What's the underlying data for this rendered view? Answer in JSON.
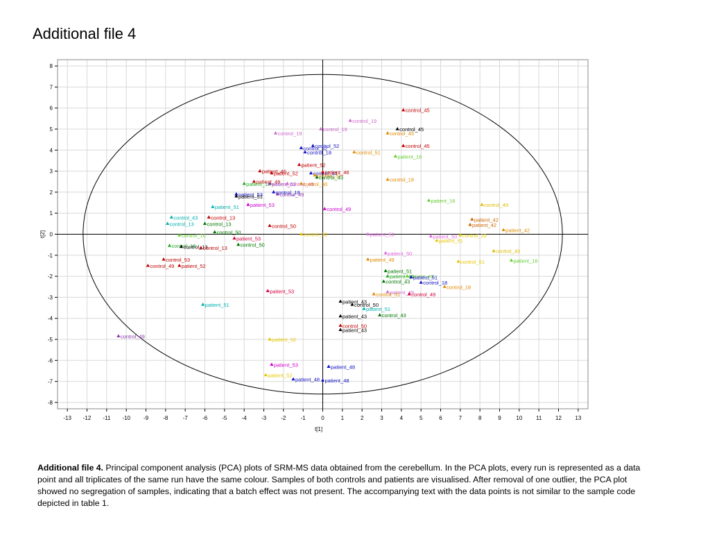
{
  "page": {
    "title": "Additional file 4",
    "caption_label": "Additional file 4.",
    "caption_text": "Principal component analysis (PCA) plots of SRM-MS data obtained from the cerebellum. In the PCA plots, every run is represented as a data point and all triplicates of the same run have the same colour. Samples of both controls and patients are visualised. After removal of one outlier, the PCA plot showed no segregation of samples, indicating that a batch effect was not present. The accompanying text with the data points is not similar to the sample code depicted in table 1."
  },
  "chart_data": {
    "type": "scatter",
    "xlabel": "t[1]",
    "ylabel": "t[2]",
    "xlim": [
      -13.5,
      13.5
    ],
    "ylim": [
      -8.3,
      8.3
    ],
    "xticks": [
      -13,
      -12,
      -11,
      -10,
      -9,
      -8,
      -7,
      -6,
      -5,
      -4,
      -3,
      -2,
      -1,
      0,
      1,
      2,
      3,
      4,
      5,
      6,
      7,
      8,
      9,
      10,
      11,
      12,
      13
    ],
    "yticks": [
      8,
      7,
      6,
      5,
      4,
      3,
      2,
      1,
      0,
      -1,
      -2,
      -3,
      -4,
      -5,
      -6,
      -7,
      -8
    ],
    "grid": true,
    "ellipse": {
      "cx": 0,
      "cy": 0,
      "rx": 12.2,
      "ry": 7.6
    },
    "colors": {
      "red": "#c00000",
      "violet": "#cc66cc",
      "orange": "#e08a00",
      "darkorange": "#cc6600",
      "navy": "#1010c0",
      "green": "#22aa22",
      "lime": "#66cc33",
      "teal": "#00b0b0",
      "black": "#000000",
      "darkgreen": "#007700",
      "crimson": "#d00040",
      "magenta": "#cc00cc",
      "yellow": "#e6c800",
      "purple": "#8833aa",
      "pink": "#dd66dd",
      "gold": "#ddbb00"
    },
    "points": [
      {
        "x": 4.1,
        "y": 5.9,
        "label": "control_45",
        "color": "red"
      },
      {
        "x": 1.4,
        "y": 5.4,
        "label": "control_19",
        "color": "violet"
      },
      {
        "x": -0.1,
        "y": 5.0,
        "label": "control_19",
        "color": "violet"
      },
      {
        "x": 3.8,
        "y": 5.0,
        "label": "control_45",
        "color": "black"
      },
      {
        "x": 3.3,
        "y": 4.8,
        "label": "control_45",
        "color": "orange"
      },
      {
        "x": -2.4,
        "y": 4.8,
        "label": "control_19",
        "color": "violet"
      },
      {
        "x": 4.1,
        "y": 4.2,
        "label": "control_45",
        "color": "red"
      },
      {
        "x": -0.5,
        "y": 4.2,
        "label": "control_52",
        "color": "navy"
      },
      {
        "x": -1.1,
        "y": 4.1,
        "label": "control_52",
        "color": "navy"
      },
      {
        "x": -0.9,
        "y": 3.9,
        "label": "control_18",
        "color": "navy"
      },
      {
        "x": 1.6,
        "y": 3.9,
        "label": "control_51",
        "color": "orange"
      },
      {
        "x": 3.7,
        "y": 3.7,
        "label": "patient_16",
        "color": "lime"
      },
      {
        "x": -1.2,
        "y": 3.3,
        "label": "patient_52",
        "color": "red"
      },
      {
        "x": -3.2,
        "y": 3.0,
        "label": "patient_46",
        "color": "red"
      },
      {
        "x": -2.6,
        "y": 2.9,
        "label": "patient_52",
        "color": "red"
      },
      {
        "x": -0.6,
        "y": 2.9,
        "label": "control_44",
        "color": "navy"
      },
      {
        "x": 0.0,
        "y": 2.95,
        "label": "patient_46",
        "color": "red"
      },
      {
        "x": -0.4,
        "y": 2.8,
        "label": "control_51",
        "color": "orange"
      },
      {
        "x": -0.3,
        "y": 2.7,
        "label": "control_43",
        "color": "darkgreen"
      },
      {
        "x": 3.3,
        "y": 2.6,
        "label": "control_18",
        "color": "orange"
      },
      {
        "x": -3.5,
        "y": 2.5,
        "label": "patient_46",
        "color": "red"
      },
      {
        "x": -4.0,
        "y": 2.4,
        "label": "patient_18",
        "color": "green"
      },
      {
        "x": -2.7,
        "y": 2.4,
        "label": "patient_53",
        "color": "purple"
      },
      {
        "x": -1.8,
        "y": 2.4,
        "label": "control_49",
        "color": "violet"
      },
      {
        "x": -1.1,
        "y": 2.4,
        "label": "control_50",
        "color": "orange"
      },
      {
        "x": -2.5,
        "y": 2.0,
        "label": "control_18",
        "color": "navy"
      },
      {
        "x": -4.4,
        "y": 1.9,
        "label": "patient_53",
        "color": "navy"
      },
      {
        "x": -4.4,
        "y": 1.8,
        "label": "patient_51",
        "color": "black"
      },
      {
        "x": -2.3,
        "y": 1.9,
        "label": "control_49",
        "color": "purple"
      },
      {
        "x": 5.4,
        "y": 1.6,
        "label": "patient_16",
        "color": "lime"
      },
      {
        "x": 8.1,
        "y": 1.4,
        "label": "control_49",
        "color": "gold"
      },
      {
        "x": -3.8,
        "y": 1.4,
        "label": "patient_53",
        "color": "magenta"
      },
      {
        "x": -5.6,
        "y": 1.3,
        "label": "patient_51",
        "color": "teal"
      },
      {
        "x": 0.1,
        "y": 1.2,
        "label": "control_49",
        "color": "magenta"
      },
      {
        "x": -7.7,
        "y": 0.8,
        "label": "control_43",
        "color": "teal"
      },
      {
        "x": -5.8,
        "y": 0.8,
        "label": "control_13",
        "color": "red"
      },
      {
        "x": -7.9,
        "y": 0.5,
        "label": "control_13",
        "color": "teal"
      },
      {
        "x": -6.0,
        "y": 0.5,
        "label": "control_13",
        "color": "darkgreen"
      },
      {
        "x": 7.6,
        "y": 0.7,
        "label": "patient_42",
        "color": "darkorange"
      },
      {
        "x": 7.5,
        "y": 0.45,
        "label": "patient_42",
        "color": "darkorange"
      },
      {
        "x": -2.7,
        "y": 0.4,
        "label": "control_50",
        "color": "red"
      },
      {
        "x": 9.2,
        "y": 0.2,
        "label": "patient_42",
        "color": "orange"
      },
      {
        "x": -5.5,
        "y": 0.1,
        "label": "control_50",
        "color": "darkgreen"
      },
      {
        "x": -7.3,
        "y": -0.05,
        "label": "control_16",
        "color": "lime"
      },
      {
        "x": -1.1,
        "y": 0.0,
        "label": "control_50",
        "color": "yellow"
      },
      {
        "x": 2.3,
        "y": 0.0,
        "label": "patient_53",
        "color": "pink"
      },
      {
        "x": 5.5,
        "y": -0.1,
        "label": "patient_50",
        "color": "pink"
      },
      {
        "x": 7.0,
        "y": -0.05,
        "label": "control_19",
        "color": "yellow"
      },
      {
        "x": 5.8,
        "y": -0.3,
        "label": "patient_51",
        "color": "yellow"
      },
      {
        "x": -4.5,
        "y": -0.2,
        "label": "patient_53",
        "color": "crimson"
      },
      {
        "x": -7.8,
        "y": -0.55,
        "label": "control_16",
        "color": "green"
      },
      {
        "x": -7.2,
        "y": -0.6,
        "label": "control_13",
        "color": "black"
      },
      {
        "x": -6.2,
        "y": -0.65,
        "label": "control_13",
        "color": "red"
      },
      {
        "x": -4.3,
        "y": -0.5,
        "label": "control_50",
        "color": "darkgreen"
      },
      {
        "x": 3.2,
        "y": -0.9,
        "label": "patient_50",
        "color": "pink"
      },
      {
        "x": 8.7,
        "y": -0.8,
        "label": "control_49",
        "color": "gold"
      },
      {
        "x": 2.3,
        "y": -1.2,
        "label": "patient_49",
        "color": "orange"
      },
      {
        "x": 6.9,
        "y": -1.3,
        "label": "control_51",
        "color": "yellow"
      },
      {
        "x": 9.6,
        "y": -1.25,
        "label": "patient_16",
        "color": "lime"
      },
      {
        "x": -8.1,
        "y": -1.2,
        "label": "control_53",
        "color": "red"
      },
      {
        "x": -8.9,
        "y": -1.5,
        "label": "control_49",
        "color": "red"
      },
      {
        "x": -7.3,
        "y": -1.5,
        "label": "patient_52",
        "color": "red"
      },
      {
        "x": 3.2,
        "y": -1.75,
        "label": "patient_51",
        "color": "darkgreen"
      },
      {
        "x": 3.3,
        "y": -2.0,
        "label": "patient_43",
        "color": "green"
      },
      {
        "x": 4.3,
        "y": -2.0,
        "label": "patient_49",
        "color": "lime"
      },
      {
        "x": 4.5,
        "y": -2.05,
        "label": "patient_51",
        "color": "navy"
      },
      {
        "x": 3.1,
        "y": -2.25,
        "label": "control_43",
        "color": "darkgreen"
      },
      {
        "x": 5.0,
        "y": -2.3,
        "label": "control_18",
        "color": "navy"
      },
      {
        "x": 6.2,
        "y": -2.5,
        "label": "control_18",
        "color": "orange"
      },
      {
        "x": -2.8,
        "y": -2.7,
        "label": "patient_53",
        "color": "crimson"
      },
      {
        "x": 3.3,
        "y": -2.75,
        "label": "patient_49",
        "color": "violet"
      },
      {
        "x": 2.6,
        "y": -2.85,
        "label": "control_51",
        "color": "orange"
      },
      {
        "x": 4.4,
        "y": -2.85,
        "label": "control_49",
        "color": "crimson"
      },
      {
        "x": 0.9,
        "y": -3.2,
        "label": "patient_43",
        "color": "black"
      },
      {
        "x": 1.5,
        "y": -3.35,
        "label": "control_50",
        "color": "black"
      },
      {
        "x": -6.1,
        "y": -3.35,
        "label": "patient_51",
        "color": "teal"
      },
      {
        "x": 2.1,
        "y": -3.55,
        "label": "patient_51",
        "color": "teal"
      },
      {
        "x": 2.9,
        "y": -3.85,
        "label": "control_43",
        "color": "darkgreen"
      },
      {
        "x": 0.9,
        "y": -3.9,
        "label": "patient_43",
        "color": "black"
      },
      {
        "x": 0.9,
        "y": -4.35,
        "label": "control_50",
        "color": "red"
      },
      {
        "x": 0.9,
        "y": -4.55,
        "label": "patient_43",
        "color": "black"
      },
      {
        "x": -10.4,
        "y": -4.85,
        "label": "control_49",
        "color": "purple"
      },
      {
        "x": -2.7,
        "y": -5.0,
        "label": "patient_52",
        "color": "yellow"
      },
      {
        "x": -2.6,
        "y": -6.2,
        "label": "patient_53",
        "color": "magenta"
      },
      {
        "x": 0.3,
        "y": -6.3,
        "label": "patient_48",
        "color": "navy"
      },
      {
        "x": -2.9,
        "y": -6.7,
        "label": "patient_52",
        "color": "yellow"
      },
      {
        "x": -1.5,
        "y": -6.9,
        "label": "patient_48",
        "color": "navy"
      },
      {
        "x": 0.0,
        "y": -6.95,
        "label": "patient_48",
        "color": "navy"
      }
    ]
  }
}
